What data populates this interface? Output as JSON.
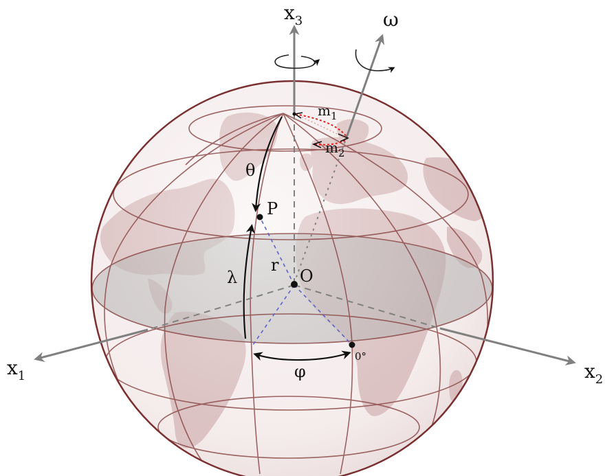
{
  "labels": {
    "axis_x1": "x",
    "axis_x1_sub": "1",
    "axis_x2": "x",
    "axis_x2_sub": "2",
    "axis_x3": "x",
    "axis_x3_sub": "3",
    "omega": "ω",
    "m1": "m",
    "m1_sub": "1",
    "m2": "m",
    "m2_sub": "2",
    "theta": "θ",
    "point_p": "P",
    "radius_r": "r",
    "origin_o": "O",
    "lambda": "λ",
    "phi": "φ",
    "zero_deg": "0°"
  },
  "colors": {
    "sphere_rim": "#7a3030",
    "graticule": "#8c4a4a",
    "land": "#c9a3a3",
    "equator_plane": "#8f8f8f",
    "axis": "#808080",
    "pole_path": "#e02020",
    "radius_dash": "#5a62c8",
    "ink": "#111111"
  }
}
